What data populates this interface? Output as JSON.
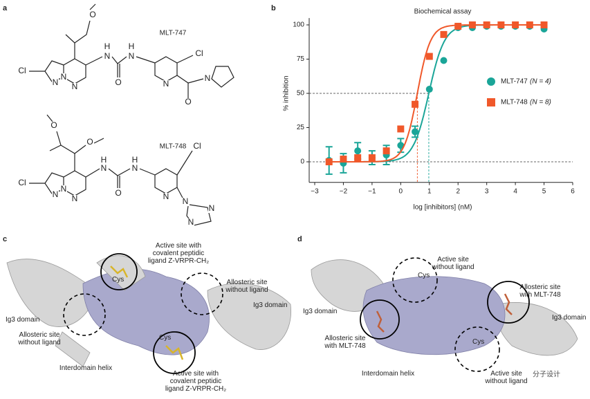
{
  "panel_labels": [
    "a",
    "b",
    "c",
    "d"
  ],
  "panel_a": {
    "compounds": [
      {
        "name": "MLT-747",
        "atoms": [
          "O",
          "N",
          "N",
          "N",
          "Cl",
          "H",
          "N",
          "O",
          "H",
          "N",
          "Cl",
          "N",
          "O",
          "N"
        ]
      },
      {
        "name": "MLT-748",
        "atoms": [
          "O",
          "O",
          "N",
          "N",
          "N",
          "Cl",
          "H",
          "N",
          "O",
          "H",
          "N",
          "Cl",
          "N",
          "N",
          "N",
          "N"
        ]
      }
    ]
  },
  "chart_data": {
    "type": "scatter",
    "title": "Biochemical assay",
    "x_label": "log [inhibitors] (nM)",
    "y_label": "% inhibition",
    "x": [
      -2.5,
      -2,
      -1.5,
      -1,
      -0.5,
      0,
      0.5,
      1,
      1.5,
      2,
      2.5,
      3,
      3.5,
      4,
      4.5,
      5
    ],
    "series": [
      {
        "name": "MLT-747",
        "n_label": "(N = 4)",
        "color": "#1aa598",
        "marker": "circle",
        "ic50_log": 0.98,
        "hill": 1.6,
        "values": [
          1,
          -1,
          8,
          3,
          5,
          12,
          22,
          53,
          74,
          98,
          98,
          99,
          99,
          99,
          99,
          97
        ],
        "errors": [
          10,
          7,
          6,
          5,
          7,
          5,
          4,
          0,
          0,
          0,
          0,
          0,
          0,
          0,
          0,
          0
        ]
      },
      {
        "name": "MLT-748",
        "n_label": "(N = 8)",
        "color": "#f0582a",
        "marker": "square",
        "ic50_log": 0.58,
        "hill": 1.9,
        "values": [
          0,
          2,
          3,
          3,
          8,
          24,
          42,
          77,
          93,
          99,
          100,
          100,
          100,
          100,
          100,
          100
        ]
      }
    ],
    "xlim": [
      -3,
      6
    ],
    "ylim": [
      -15,
      105
    ],
    "xticks": [
      {
        "value": -3,
        "label": "−3"
      },
      {
        "value": -2,
        "label": "−2"
      },
      {
        "value": -1,
        "label": "−1"
      },
      0,
      1,
      2,
      3,
      4,
      5,
      6
    ],
    "yticks": [
      0,
      25,
      50,
      75,
      100
    ],
    "reference_y": [
      0,
      50
    ]
  },
  "panel_c": {
    "labels": [
      {
        "lines": [
          "Active site with",
          "covalent peptidic",
          "ligand Z-VRPR-CH₂"
        ]
      },
      {
        "lines": [
          "Allosteric site",
          "without ligand"
        ]
      },
      {
        "lines": [
          "Ig3 domain"
        ]
      },
      {
        "lines": [
          "Ig3 domain"
        ]
      },
      {
        "lines": [
          "Allosteric site",
          "without ligand"
        ]
      },
      {
        "lines": [
          "Interdomain helix"
        ]
      },
      {
        "lines": [
          "Active site with",
          "covalent peptidic",
          "ligand Z-VRPR-CH₂"
        ]
      },
      {
        "lines": [
          "Cys"
        ]
      },
      {
        "lines": [
          "Cys"
        ]
      }
    ]
  },
  "panel_d": {
    "labels": [
      {
        "lines": [
          "Active site",
          "without ligand"
        ]
      },
      {
        "lines": [
          "Allosteric site",
          "with MLT-748"
        ]
      },
      {
        "lines": [
          "Ig3 domain"
        ]
      },
      {
        "lines": [
          "Ig3 domain"
        ]
      },
      {
        "lines": [
          "Allosteric site",
          "with MLT-748"
        ]
      },
      {
        "lines": [
          "Interdomain helix"
        ]
      },
      {
        "lines": [
          "Active site",
          "without ligand"
        ]
      },
      {
        "lines": [
          "Cys"
        ]
      },
      {
        "lines": [
          "Cys"
        ]
      }
    ]
  },
  "watermark": "分子设计"
}
